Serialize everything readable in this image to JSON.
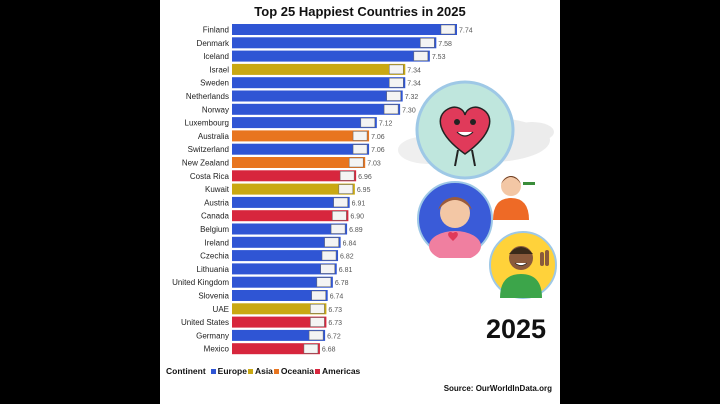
{
  "chart_data": {
    "type": "bar",
    "orientation": "horizontal",
    "title": "Top 25 Happiest Countries in 2025",
    "categories": [
      "Finland",
      "Denmark",
      "Iceland",
      "Israel",
      "Sweden",
      "Netherlands",
      "Norway",
      "Luxembourg",
      "Australia",
      "Switzerland",
      "New Zealand",
      "Costa Rica",
      "Kuwait",
      "Austria",
      "Canada",
      "Belgium",
      "Ireland",
      "Czechia",
      "Lithuania",
      "United Kingdom",
      "Slovenia",
      "UAE",
      "United States",
      "Germany",
      "Mexico"
    ],
    "values": [
      7.74,
      7.58,
      7.53,
      7.34,
      7.34,
      7.32,
      7.3,
      7.12,
      7.06,
      7.06,
      7.03,
      6.96,
      6.95,
      6.91,
      6.9,
      6.89,
      6.84,
      6.82,
      6.81,
      6.78,
      6.74,
      6.73,
      6.73,
      6.72,
      6.68
    ],
    "value_labels": [
      "7.74",
      "7.58",
      "7.53",
      "7.34",
      "7.34",
      "7.32",
      "7.30",
      "7.12",
      "7.06",
      "7.06",
      "7.03",
      "6.96",
      "6.95",
      "6.91",
      "6.90",
      "6.89",
      "6.84",
      "6.82",
      "6.81",
      "6.78",
      "6.74",
      "6.73",
      "6.73",
      "6.72",
      "6.68"
    ],
    "continent": [
      "Europe",
      "Europe",
      "Europe",
      "Asia",
      "Europe",
      "Europe",
      "Europe",
      "Europe",
      "Oceania",
      "Europe",
      "Oceania",
      "Americas",
      "Asia",
      "Europe",
      "Americas",
      "Europe",
      "Europe",
      "Europe",
      "Europe",
      "Europe",
      "Europe",
      "Asia",
      "Americas",
      "Europe",
      "Americas"
    ],
    "legend": {
      "title": "Continent",
      "entries": [
        {
          "name": "Europe",
          "color": "#2f55d4"
        },
        {
          "name": "Asia",
          "color": "#c9a812"
        },
        {
          "name": "Oceania",
          "color": "#e8751f"
        },
        {
          "name": "Americas",
          "color": "#d7263d"
        }
      ]
    },
    "year_label": "2025",
    "source": "Source: OurWorldInData.org"
  }
}
